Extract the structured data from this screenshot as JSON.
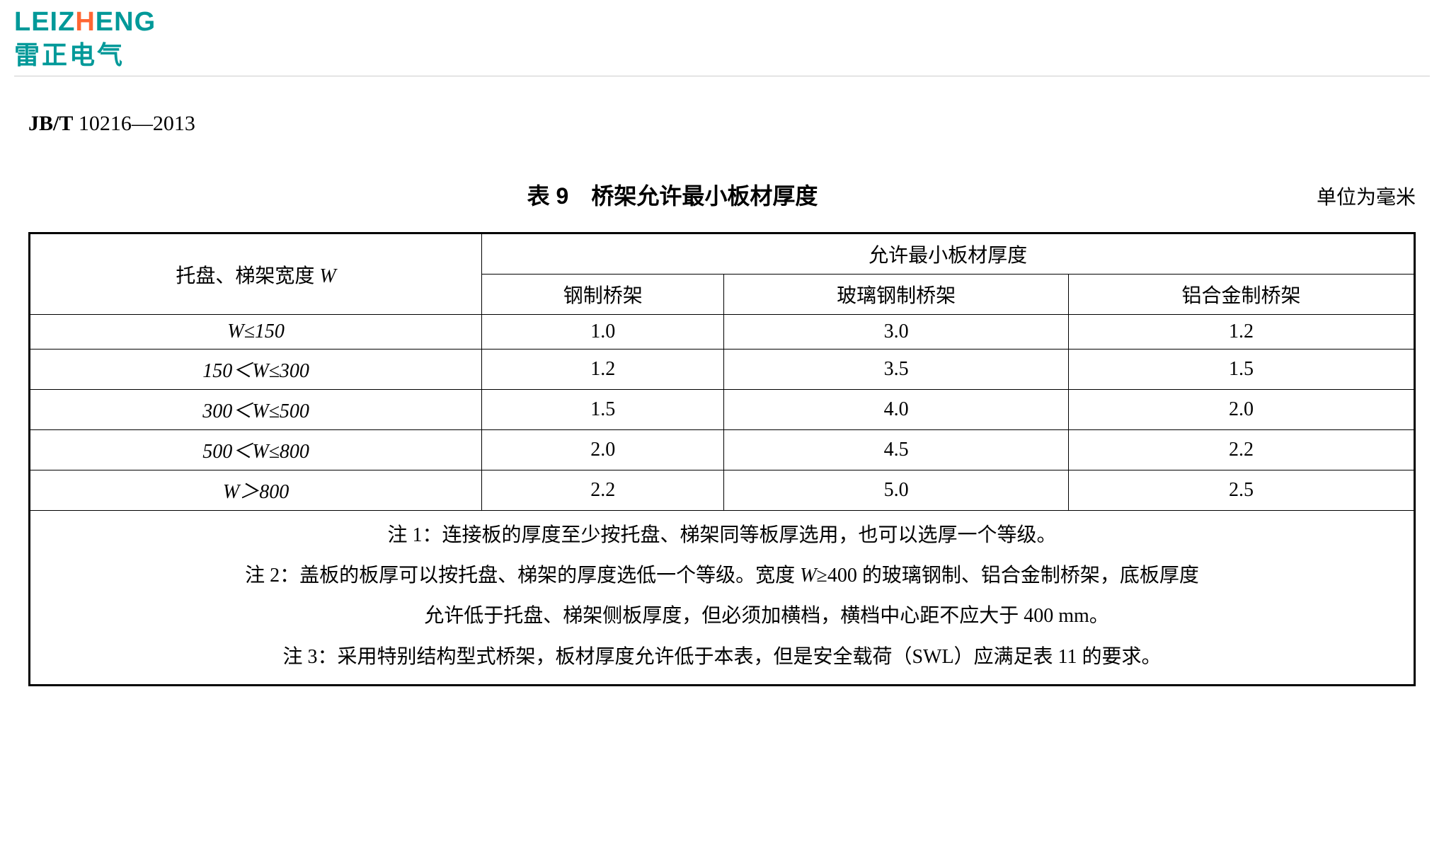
{
  "logo": {
    "text_en_prefix": "LEIZ",
    "text_en_h": "H",
    "text_en_suffix": "ENG",
    "text_cn": "雷正电气",
    "color_primary": "#009999",
    "color_accent": "#ff6633"
  },
  "standard": {
    "prefix_bold": "JB/T",
    "code": " 10216—2013"
  },
  "table": {
    "title": "表 9　桥架允许最小板材厚度",
    "unit": "单位为毫米",
    "header_row1_col1": "托盘、梯架宽度 ",
    "header_row1_col1_var": "W",
    "header_row1_merged": "允许最小板材厚度",
    "header_row2": [
      "钢制桥架",
      "玻璃钢制桥架",
      "铝合金制桥架"
    ],
    "rows": [
      {
        "range_html": "<span class='w-var'>W</span>≤150",
        "vals": [
          "1.0",
          "3.0",
          "1.2"
        ]
      },
      {
        "range_html": "150＜<span class='w-var'>W</span>≤300",
        "vals": [
          "1.2",
          "3.5",
          "1.5"
        ]
      },
      {
        "range_html": "300＜<span class='w-var'>W</span>≤500",
        "vals": [
          "1.5",
          "4.0",
          "2.0"
        ]
      },
      {
        "range_html": "500＜<span class='w-var'>W</span>≤800",
        "vals": [
          "2.0",
          "4.5",
          "2.2"
        ]
      },
      {
        "range_html": "<span class='w-var'>W</span>＞800",
        "vals": [
          "2.2",
          "5.0",
          "2.5"
        ]
      }
    ],
    "notes": [
      "注 1：连接板的厚度至少按托盘、梯架同等板厚选用，也可以选厚一个等级。",
      "注 2：盖板的板厚可以按托盘、梯架的厚度选低一个等级。宽度 <span class='ital'>W</span>≥400 的玻璃钢制、铝合金制桥架，底板厚度",
      "允许低于托盘、梯架侧板厚度，但必须加横档，横档中心距不应大于 400 mm。",
      "注 3：采用特别结构型式桥架，板材厚度允许低于本表，但是安全载荷（SWL）应满足表 11 的要求。"
    ],
    "note2_continuation_index": 2,
    "border_color": "#000000",
    "background_color": "#ffffff",
    "cell_fontsize": 28,
    "title_fontsize": 32
  }
}
